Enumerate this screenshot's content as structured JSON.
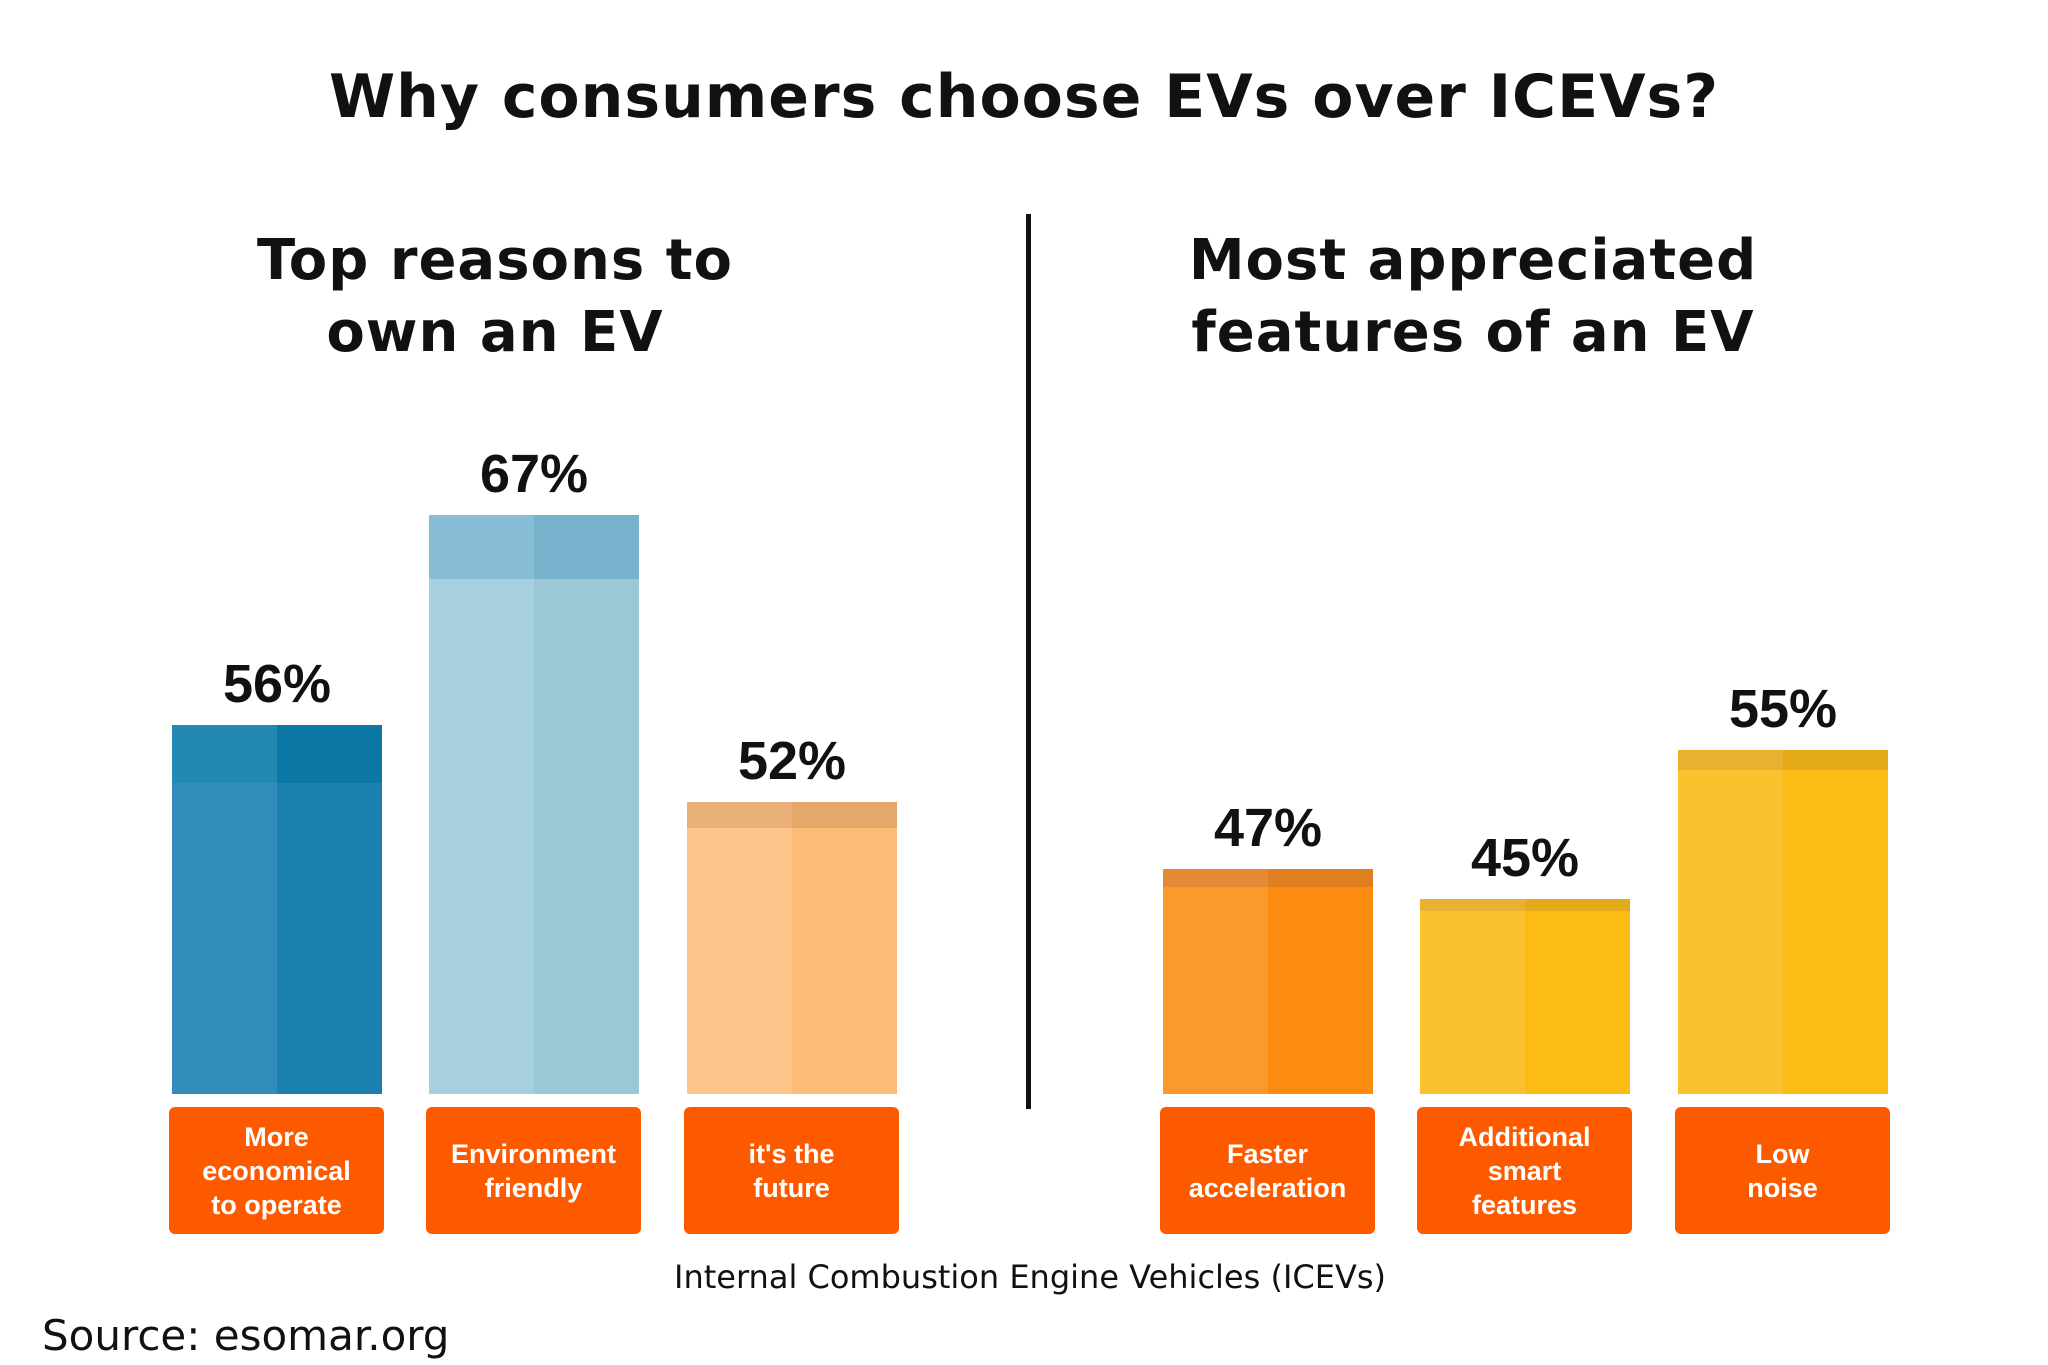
{
  "chart_data": [
    {
      "type": "bar",
      "title": "Top reasons to own an EV",
      "categories": [
        "More economical to operate",
        "Environment friendly",
        "it's the future"
      ],
      "values": [
        56,
        67,
        52
      ],
      "data_labels": [
        "56%",
        "67%",
        "52%"
      ],
      "colors": [
        [
          "#338dba",
          "#1b80ad",
          "#2389b0",
          "#0b78a6"
        ],
        [
          "#a6cfdf",
          "#9bc7d6",
          "#87bed6",
          "#79b2cd"
        ],
        [
          "#fdc58a",
          "#fdbd78",
          "#e8b078",
          "#e4a86a"
        ]
      ],
      "grid": false
    },
    {
      "type": "bar",
      "title": "Most appreciated features of an EV",
      "categories": [
        "Faster acceleration",
        "Additional smart features",
        "Low noise"
      ],
      "values": [
        47,
        45,
        55
      ],
      "data_labels": [
        "47%",
        "45%",
        "55%"
      ],
      "colors": [
        [
          "#fb9a2a",
          "#fb8c10",
          "#e48a35",
          "#e07f22"
        ],
        [
          "#fcc12e",
          "#fcbb15",
          "#e8b230",
          "#e5aa18"
        ],
        [
          "#fcc12e",
          "#fcbb15",
          "#e8b230",
          "#e5aa18"
        ]
      ],
      "grid": false
    }
  ],
  "title": "Why consumers choose EVs over ICEVs?",
  "left_subtitle": [
    "Top reasons to",
    "own an EV"
  ],
  "right_subtitle": [
    "Most appreciated",
    "features of an EV"
  ],
  "left_labels": [
    [
      "More",
      "economical",
      "to operate"
    ],
    [
      "Environment",
      "friendly"
    ],
    [
      "it's the",
      "future"
    ]
  ],
  "right_labels": [
    [
      "Faster",
      "acceleration"
    ],
    [
      "Additional",
      "smart",
      "features"
    ],
    [
      "Low",
      "noise"
    ]
  ],
  "footnote": "Internal Combustion Engine Vehicles (ICEVs)",
  "source": "Source: esomar.org",
  "label_color": "#fd5a00"
}
